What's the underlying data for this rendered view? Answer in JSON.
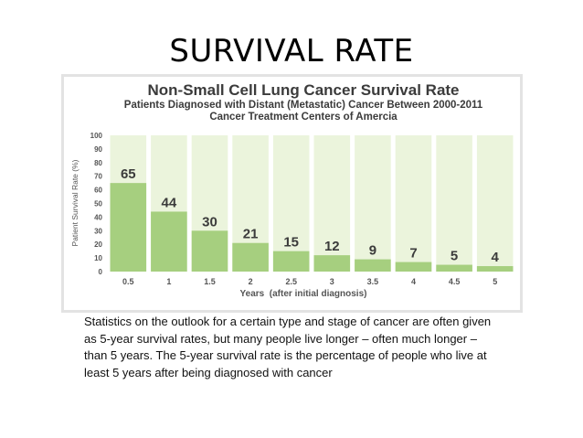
{
  "slide": {
    "title": "SURVIVAL RATE",
    "caption": "Statistics on the outlook for a certain type and stage of cancer are often given as 5-year survival rates, but many people live longer – often much longer – than 5 years. The 5-year survival rate is the percentage of people who live at least 5 years after being diagnosed with cancer"
  },
  "chart_data": {
    "type": "bar",
    "title": "Non-Small Cell Lung Cancer Survival Rate",
    "subtitle": "Patients Diagnosed with Distant (Metastatic) Cancer Between 2000-2011",
    "subtitle2": "Cancer Treatment Centers of Amercia",
    "xlabel": "Years  (after initial diagnosis)",
    "ylabel": "Patient Survival Rate (%)",
    "categories": [
      "0.5",
      "1",
      "1.5",
      "2",
      "2.5",
      "3",
      "3.5",
      "4",
      "4.5",
      "5"
    ],
    "values": [
      65,
      44,
      30,
      21,
      15,
      12,
      9,
      7,
      5,
      4
    ],
    "yticks": [
      "0",
      "10",
      "20",
      "30",
      "40",
      "50",
      "60",
      "70",
      "80",
      "90",
      "100"
    ],
    "ylim": [
      0,
      100
    ],
    "grid": false,
    "colors": {
      "bar": "#a6cf7f",
      "background_column": "#ebf4dc",
      "title": "#3b3b3b",
      "value_label": "#3b3b3b"
    }
  }
}
